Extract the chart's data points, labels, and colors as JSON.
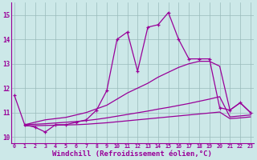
{
  "background_color": "#cce8e8",
  "line_color": "#990099",
  "grid_color": "#99bbbb",
  "xlabel": "Windchill (Refroidissement éolien,°C)",
  "xlabel_fontsize": 6.5,
  "ytick_labels": [
    10,
    11,
    12,
    13,
    14,
    15
  ],
  "xtick_labels": [
    0,
    1,
    2,
    3,
    4,
    5,
    6,
    7,
    8,
    9,
    10,
    11,
    12,
    13,
    14,
    15,
    16,
    17,
    18,
    19,
    20,
    21,
    22,
    23
  ],
  "xlim": [
    -0.3,
    23.3
  ],
  "ylim": [
    9.75,
    15.5
  ],
  "line1_x": [
    0,
    1,
    2,
    3,
    4,
    5,
    6,
    7,
    8,
    9,
    10,
    11,
    12,
    13,
    14,
    15,
    16,
    17,
    18,
    19,
    20,
    21,
    22,
    23
  ],
  "line1_y": [
    11.7,
    10.5,
    10.4,
    10.2,
    10.5,
    10.5,
    10.6,
    10.7,
    11.1,
    11.9,
    14.0,
    14.3,
    12.7,
    14.5,
    14.6,
    15.1,
    14.0,
    13.2,
    13.2,
    13.2,
    11.2,
    11.1,
    11.4,
    11.0
  ],
  "line2_x": [
    1,
    2,
    3,
    4,
    5,
    6,
    7,
    8,
    9,
    10,
    11,
    12,
    13,
    14,
    15,
    16,
    17,
    18,
    19,
    20,
    21,
    22,
    23
  ],
  "line2_y": [
    10.5,
    10.6,
    10.7,
    10.75,
    10.8,
    10.9,
    11.0,
    11.15,
    11.3,
    11.55,
    11.8,
    12.0,
    12.2,
    12.45,
    12.65,
    12.85,
    13.0,
    13.1,
    13.1,
    12.9,
    11.1,
    11.4,
    11.0
  ],
  "line3_x": [
    1,
    2,
    3,
    4,
    5,
    6,
    7,
    8,
    9,
    10,
    11,
    12,
    13,
    14,
    15,
    16,
    17,
    18,
    19,
    20,
    21,
    22,
    23
  ],
  "line3_y": [
    10.5,
    10.52,
    10.54,
    10.57,
    10.6,
    10.63,
    10.67,
    10.72,
    10.78,
    10.85,
    10.92,
    10.99,
    11.06,
    11.14,
    11.21,
    11.29,
    11.37,
    11.46,
    11.55,
    11.65,
    10.82,
    10.86,
    10.9
  ],
  "line4_x": [
    1,
    2,
    3,
    4,
    5,
    6,
    7,
    8,
    9,
    10,
    11,
    12,
    13,
    14,
    15,
    16,
    17,
    18,
    19,
    20,
    21,
    22,
    23
  ],
  "line4_y": [
    10.45,
    10.46,
    10.47,
    10.48,
    10.49,
    10.5,
    10.52,
    10.55,
    10.58,
    10.62,
    10.66,
    10.7,
    10.74,
    10.78,
    10.82,
    10.86,
    10.9,
    10.94,
    10.98,
    11.02,
    10.75,
    10.78,
    10.82
  ]
}
